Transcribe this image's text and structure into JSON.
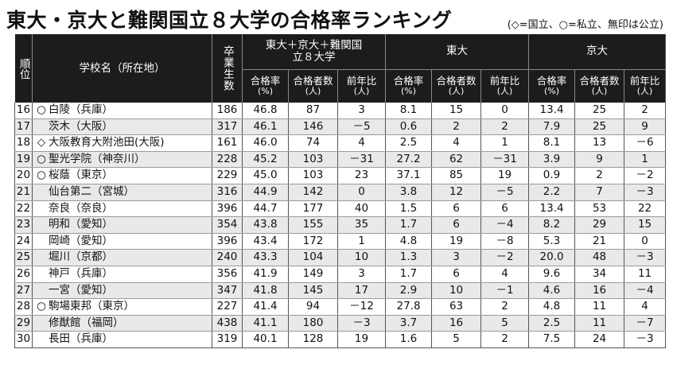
{
  "header": {
    "title": "東大・京大と難関国立８大学の合格率ランキング",
    "legend": "(◇=国立、○=私立、無印は公立)"
  },
  "table": {
    "col_rank": "順位",
    "col_school": "学校名（所在地）",
    "col_graduates": "卒業生数",
    "group_all": "東大＋京大＋難関国立８大学",
    "group_todai": "東大",
    "group_kyodai": "京大",
    "sub_rate": "合格率",
    "sub_rate_unit": "(%)",
    "sub_count": "合格者数",
    "sub_count_unit": "(人)",
    "sub_yoy": "前年比",
    "sub_yoy_unit": "(人)",
    "rows": [
      {
        "rank": "16",
        "mark": "○",
        "school": "白陵（兵庫）",
        "grads": "186",
        "all_rate": "46.8",
        "all_count": "87",
        "all_yoy": "3",
        "t_rate": "8.1",
        "t_count": "15",
        "t_yoy": "0",
        "k_rate": "13.4",
        "k_count": "25",
        "k_yoy": "2"
      },
      {
        "rank": "17",
        "mark": "",
        "school": "茨木（大阪）",
        "grads": "317",
        "all_rate": "46.1",
        "all_count": "146",
        "all_yoy": "－5",
        "t_rate": "0.6",
        "t_count": "2",
        "t_yoy": "2",
        "k_rate": "7.9",
        "k_count": "25",
        "k_yoy": "9"
      },
      {
        "rank": "18",
        "mark": "◇",
        "school": "大阪教育大附池田(大阪)",
        "grads": "161",
        "all_rate": "46.0",
        "all_count": "74",
        "all_yoy": "4",
        "t_rate": "2.5",
        "t_count": "4",
        "t_yoy": "1",
        "k_rate": "8.1",
        "k_count": "13",
        "k_yoy": "－6"
      },
      {
        "rank": "19",
        "mark": "○",
        "school": "聖光学院（神奈川）",
        "grads": "228",
        "all_rate": "45.2",
        "all_count": "103",
        "all_yoy": "－31",
        "t_rate": "27.2",
        "t_count": "62",
        "t_yoy": "－31",
        "k_rate": "3.9",
        "k_count": "9",
        "k_yoy": "1"
      },
      {
        "rank": "20",
        "mark": "○",
        "school": "桜蔭（東京）",
        "grads": "229",
        "all_rate": "45.0",
        "all_count": "103",
        "all_yoy": "23",
        "t_rate": "37.1",
        "t_count": "85",
        "t_yoy": "19",
        "k_rate": "0.9",
        "k_count": "2",
        "k_yoy": "－2"
      },
      {
        "rank": "21",
        "mark": "",
        "school": "仙台第二（宮城）",
        "grads": "316",
        "all_rate": "44.9",
        "all_count": "142",
        "all_yoy": "0",
        "t_rate": "3.8",
        "t_count": "12",
        "t_yoy": "－5",
        "k_rate": "2.2",
        "k_count": "7",
        "k_yoy": "－3"
      },
      {
        "rank": "22",
        "mark": "",
        "school": "奈良（奈良）",
        "grads": "396",
        "all_rate": "44.7",
        "all_count": "177",
        "all_yoy": "40",
        "t_rate": "1.5",
        "t_count": "6",
        "t_yoy": "6",
        "k_rate": "13.4",
        "k_count": "53",
        "k_yoy": "22"
      },
      {
        "rank": "23",
        "mark": "",
        "school": "明和（愛知）",
        "grads": "354",
        "all_rate": "43.8",
        "all_count": "155",
        "all_yoy": "35",
        "t_rate": "1.7",
        "t_count": "6",
        "t_yoy": "－4",
        "k_rate": "8.2",
        "k_count": "29",
        "k_yoy": "15"
      },
      {
        "rank": "24",
        "mark": "",
        "school": "岡崎（愛知）",
        "grads": "396",
        "all_rate": "43.4",
        "all_count": "172",
        "all_yoy": "1",
        "t_rate": "4.8",
        "t_count": "19",
        "t_yoy": "－8",
        "k_rate": "5.3",
        "k_count": "21",
        "k_yoy": "0"
      },
      {
        "rank": "25",
        "mark": "",
        "school": "堀川（京都）",
        "grads": "240",
        "all_rate": "43.3",
        "all_count": "104",
        "all_yoy": "10",
        "t_rate": "1.3",
        "t_count": "3",
        "t_yoy": "－2",
        "k_rate": "20.0",
        "k_count": "48",
        "k_yoy": "－3"
      },
      {
        "rank": "26",
        "mark": "",
        "school": "神戸（兵庫）",
        "grads": "356",
        "all_rate": "41.9",
        "all_count": "149",
        "all_yoy": "3",
        "t_rate": "1.7",
        "t_count": "6",
        "t_yoy": "4",
        "k_rate": "9.6",
        "k_count": "34",
        "k_yoy": "11"
      },
      {
        "rank": "27",
        "mark": "",
        "school": "一宮（愛知）",
        "grads": "347",
        "all_rate": "41.8",
        "all_count": "145",
        "all_yoy": "17",
        "t_rate": "2.9",
        "t_count": "10",
        "t_yoy": "－1",
        "k_rate": "4.6",
        "k_count": "16",
        "k_yoy": "－4"
      },
      {
        "rank": "28",
        "mark": "○",
        "school": "駒場東邦（東京）",
        "grads": "227",
        "all_rate": "41.4",
        "all_count": "94",
        "all_yoy": "－12",
        "t_rate": "27.8",
        "t_count": "63",
        "t_yoy": "2",
        "k_rate": "4.8",
        "k_count": "11",
        "k_yoy": "4"
      },
      {
        "rank": "29",
        "mark": "",
        "school": "修猷館（福岡）",
        "grads": "438",
        "all_rate": "41.1",
        "all_count": "180",
        "all_yoy": "－3",
        "t_rate": "3.7",
        "t_count": "16",
        "t_yoy": "5",
        "k_rate": "2.5",
        "k_count": "11",
        "k_yoy": "－7"
      },
      {
        "rank": "30",
        "mark": "",
        "school": "長田（兵庫）",
        "grads": "319",
        "all_rate": "40.1",
        "all_count": "128",
        "all_yoy": "19",
        "t_rate": "1.6",
        "t_count": "5",
        "t_yoy": "2",
        "k_rate": "7.5",
        "k_count": "24",
        "k_yoy": "－3"
      }
    ]
  }
}
